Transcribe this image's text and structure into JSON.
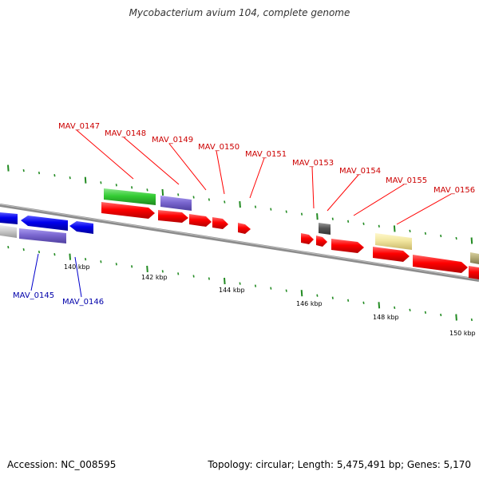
{
  "title": "Mycobacterium avium 104, complete genome",
  "footer": {
    "accession": "Accession: NC_008595",
    "summary": "Topology: circular; Length: 5,475,491 bp; Genes: 5,170"
  },
  "colors": {
    "forward_gene": "#ff0000",
    "forward_label": "#cc0000",
    "reverse_gene": "#0000ee",
    "reverse_label": "#0000aa",
    "rrna_like": "#33cc33",
    "purple_gene": "#7b68d0",
    "gray_gene": "#555555",
    "khaki_gene": "#f2e6a0",
    "tick": "#228b22",
    "backbone": "#8c8c8c"
  },
  "scale_labels": [
    {
      "text": "140 kbp"
    },
    {
      "text": "142 kbp"
    },
    {
      "text": "144 kbp"
    },
    {
      "text": "146 kbp"
    },
    {
      "text": "148 kbp"
    },
    {
      "text": "150 kbp"
    }
  ],
  "gene_labels_forward": [
    {
      "text": "MAV_0147"
    },
    {
      "text": "MAV_0148"
    },
    {
      "text": "MAV_0149"
    },
    {
      "text": "MAV_0150"
    },
    {
      "text": "MAV_0151"
    },
    {
      "text": "MAV_0153"
    },
    {
      "text": "MAV_0154"
    },
    {
      "text": "MAV_0155"
    },
    {
      "text": "MAV_0156"
    }
  ],
  "gene_labels_reverse": [
    {
      "text": "MAV_0145"
    },
    {
      "text": "MAV_0146"
    }
  ]
}
